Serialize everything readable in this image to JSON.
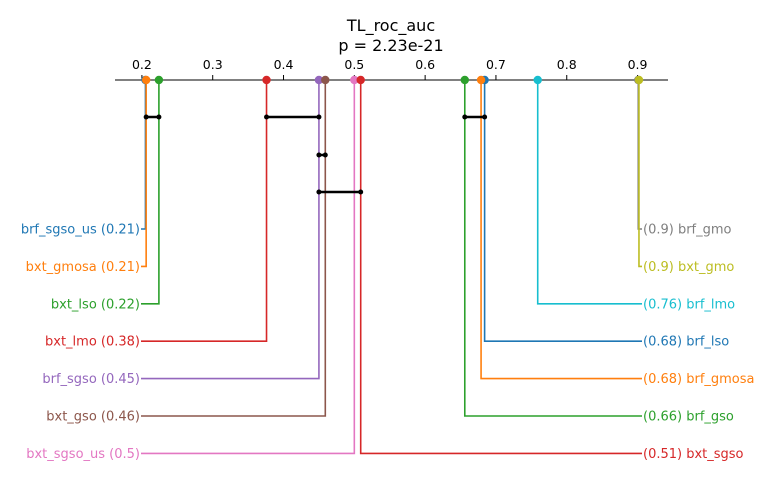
{
  "chart_data": {
    "type": "critical-difference",
    "title": "TL_roc_auc",
    "subtitle": "p = 2.23e-21",
    "xlim": [
      0.162,
      0.943
    ],
    "ticks": [
      0.2,
      0.3,
      0.4,
      0.5,
      0.6,
      0.7,
      0.8,
      0.9
    ],
    "tick_labels": [
      "0.2",
      "0.3",
      "0.4",
      "0.5",
      "0.6",
      "0.7",
      "0.8",
      "0.9"
    ],
    "left_items": [
      {
        "name": "brf_sgso_us",
        "value": 0.205,
        "display": "0.21",
        "color": "#1f77b4"
      },
      {
        "name": "bxt_gmosa",
        "value": 0.206,
        "display": "0.21",
        "color": "#ff7f0e"
      },
      {
        "name": "bxt_lso",
        "value": 0.224,
        "display": "0.22",
        "color": "#2ca02c"
      },
      {
        "name": "bxt_lmo",
        "value": 0.376,
        "display": "0.38",
        "color": "#d62728"
      },
      {
        "name": "brf_sgso",
        "value": 0.45,
        "display": "0.45",
        "color": "#9467bd"
      },
      {
        "name": "bxt_gso",
        "value": 0.459,
        "display": "0.46",
        "color": "#8c564b"
      },
      {
        "name": "bxt_sgso_us",
        "value": 0.5,
        "display": "0.5",
        "color": "#e377c2"
      }
    ],
    "right_items": [
      {
        "name": "brf_gmo",
        "value": 0.901,
        "display": "0.9",
        "color": "#7f7f7f"
      },
      {
        "name": "bxt_gmo",
        "value": 0.902,
        "display": "0.9",
        "color": "#bcbd22"
      },
      {
        "name": "brf_lmo",
        "value": 0.759,
        "display": "0.76",
        "color": "#17becf"
      },
      {
        "name": "brf_lso",
        "value": 0.684,
        "display": "0.68",
        "color": "#1f77b4"
      },
      {
        "name": "brf_gmosa",
        "value": 0.679,
        "display": "0.68",
        "color": "#ff7f0e"
      },
      {
        "name": "brf_gso",
        "value": 0.656,
        "display": "0.66",
        "color": "#2ca02c"
      },
      {
        "name": "bxt_sgso",
        "value": 0.509,
        "display": "0.51",
        "color": "#d62728"
      }
    ],
    "cliques": [
      [
        0.206,
        0.224
      ],
      [
        0.376,
        0.45
      ],
      [
        0.656,
        0.684
      ],
      [
        0.45,
        0.459
      ],
      [
        0.45,
        0.509
      ]
    ]
  }
}
